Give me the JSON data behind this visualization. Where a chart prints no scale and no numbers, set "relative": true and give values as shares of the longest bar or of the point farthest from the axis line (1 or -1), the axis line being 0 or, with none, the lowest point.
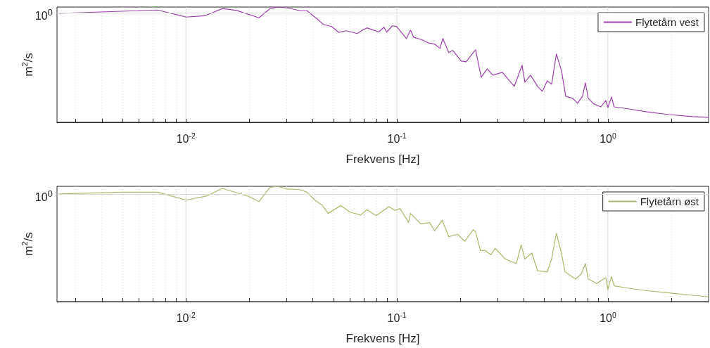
{
  "chart_data": [
    {
      "type": "line",
      "xlabel": "Frekvens [Hz]",
      "ylabel": "m$^{2}$/s",
      "log": "x",
      "relative": true,
      "grid": "x",
      "legend": "top right",
      "xlim": [
        0.00245,
        3.0
      ],
      "xticks": [
        {
          "value": 0.003,
          "label": null
        },
        {
          "value": 0.004,
          "label": null
        },
        {
          "value": 0.005,
          "label": null
        },
        {
          "value": 0.006,
          "label": null
        },
        {
          "value": 0.007,
          "label": null
        },
        {
          "value": 0.008,
          "label": null
        },
        {
          "value": 0.009,
          "label": null
        },
        {
          "value": 0.01,
          "label": "10$^{-2}$"
        },
        {
          "value": 0.02,
          "label": null
        },
        {
          "value": 0.03,
          "label": null
        },
        {
          "value": 0.04,
          "label": null
        },
        {
          "value": 0.05,
          "label": null
        },
        {
          "value": 0.06,
          "label": null
        },
        {
          "value": 0.07,
          "label": null
        },
        {
          "value": 0.08,
          "label": null
        },
        {
          "value": 0.09,
          "label": null
        },
        {
          "value": 0.1,
          "label": "10$^{-1}$"
        },
        {
          "value": 0.2,
          "label": null
        },
        {
          "value": 0.3,
          "label": null
        },
        {
          "value": 0.4,
          "label": null
        },
        {
          "value": 0.5,
          "label": null
        },
        {
          "value": 0.6,
          "label": null
        },
        {
          "value": 0.7,
          "label": null
        },
        {
          "value": 0.8,
          "label": null
        },
        {
          "value": 0.9,
          "label": null
        },
        {
          "value": 1,
          "label": "10$^{0}$"
        },
        {
          "value": 2,
          "label": null
        }
      ],
      "ref_lines": [
        {
          "axis": "y",
          "value": 0.95,
          "color": "#dcdcdc"
        }
      ],
      "annotations": [
        "10$^{0}$"
      ],
      "series": [
        {
          "name": "Flytetårn vest",
          "color": "#9e3fae",
          "x": [
            0.0025,
            0.00735,
            0.01,
            0.0123,
            0.0149,
            0.0174,
            0.0222,
            0.025,
            0.0274,
            0.0305,
            0.0348,
            0.0375,
            0.0418,
            0.0448,
            0.0491,
            0.0531,
            0.0569,
            0.0604,
            0.0648,
            0.0684,
            0.0721,
            0.0779,
            0.0822,
            0.0868,
            0.0895,
            0.0951,
            0.0996,
            0.111,
            0.116,
            0.12,
            0.132,
            0.14,
            0.151,
            0.16,
            0.165,
            0.176,
            0.184,
            0.202,
            0.213,
            0.23,
            0.236,
            0.251,
            0.268,
            0.285,
            0.316,
            0.36,
            0.392,
            0.404,
            0.43,
            0.464,
            0.489,
            0.516,
            0.541,
            0.57,
            0.602,
            0.631,
            0.681,
            0.718,
            0.758,
            0.782,
            0.807,
            0.857,
            0.926,
            0.977,
            1.0,
            1.04,
            1.07,
            1.26,
            1.51,
            1.95,
            2.52,
            3.0
          ],
          "values": [
            0.945,
            0.974,
            0.913,
            0.924,
            0.987,
            0.97,
            0.907,
            0.985,
            1,
            0.991,
            0.968,
            0.968,
            0.898,
            0.849,
            0.831,
            0.779,
            0.794,
            0.785,
            0.77,
            0.798,
            0.819,
            0.798,
            0.785,
            0.825,
            0.782,
            0.837,
            0.831,
            0.727,
            0.8,
            0.739,
            0.715,
            0.69,
            0.678,
            0.641,
            0.727,
            0.605,
            0.623,
            0.531,
            0.525,
            0.605,
            0.629,
            0.391,
            0.464,
            0.409,
            0.434,
            0.312,
            0.495,
            0.348,
            0.409,
            0.312,
            0.269,
            0.36,
            0.33,
            0.593,
            0.452,
            0.226,
            0.208,
            0.165,
            0.226,
            0.342,
            0.208,
            0.159,
            0.134,
            0.189,
            0.128,
            0.22,
            0.134,
            0.116,
            0.092,
            0.067,
            0.049,
            0.043
          ]
        }
      ]
    },
    {
      "type": "line",
      "xlabel": "Frekvens [Hz]",
      "ylabel": "m$^{2}$/s",
      "log": "x",
      "relative": true,
      "grid": "x",
      "legend": "top right",
      "xlim": [
        0.00245,
        3.0
      ],
      "xticks": [
        {
          "value": 0.003,
          "label": null
        },
        {
          "value": 0.004,
          "label": null
        },
        {
          "value": 0.005,
          "label": null
        },
        {
          "value": 0.006,
          "label": null
        },
        {
          "value": 0.007,
          "label": null
        },
        {
          "value": 0.008,
          "label": null
        },
        {
          "value": 0.009,
          "label": null
        },
        {
          "value": 0.01,
          "label": "10$^{-2}$"
        },
        {
          "value": 0.02,
          "label": null
        },
        {
          "value": 0.03,
          "label": null
        },
        {
          "value": 0.04,
          "label": null
        },
        {
          "value": 0.05,
          "label": null
        },
        {
          "value": 0.06,
          "label": null
        },
        {
          "value": 0.07,
          "label": null
        },
        {
          "value": 0.08,
          "label": null
        },
        {
          "value": 0.09,
          "label": null
        },
        {
          "value": 0.1,
          "label": "10$^{-1}$"
        },
        {
          "value": 0.2,
          "label": null
        },
        {
          "value": 0.3,
          "label": null
        },
        {
          "value": 0.4,
          "label": null
        },
        {
          "value": 0.5,
          "label": null
        },
        {
          "value": 0.6,
          "label": null
        },
        {
          "value": 0.7,
          "label": null
        },
        {
          "value": 0.8,
          "label": null
        },
        {
          "value": 0.9,
          "label": null
        },
        {
          "value": 1,
          "label": "10$^{0}$"
        },
        {
          "value": 2,
          "label": null
        }
      ],
      "ref_lines": [
        {
          "axis": "y",
          "value": 0.93,
          "color": "#dcdcdc"
        }
      ],
      "annotations": [
        "10$^{0}$"
      ],
      "series": [
        {
          "name": "Flytetårn øst",
          "color": "#a9b96b",
          "x": [
            0.0025,
            0.00493,
            0.00735,
            0.01,
            0.0125,
            0.0149,
            0.0198,
            0.0222,
            0.025,
            0.027,
            0.0305,
            0.0348,
            0.0375,
            0.0408,
            0.0441,
            0.0472,
            0.0543,
            0.06,
            0.0673,
            0.0721,
            0.0797,
            0.0916,
            0.0979,
            0.1035,
            0.1136,
            0.116,
            0.1294,
            0.143,
            0.151,
            0.164,
            0.176,
            0.194,
            0.21,
            0.23,
            0.236,
            0.249,
            0.261,
            0.279,
            0.292,
            0.326,
            0.368,
            0.388,
            0.404,
            0.436,
            0.464,
            0.516,
            0.541,
            0.57,
            0.602,
            0.626,
            0.702,
            0.747,
            0.782,
            0.807,
            0.884,
            0.977,
            1.0,
            1.04,
            1.07,
            1.26,
            1.51,
            1.95,
            2.52,
            3.0
          ],
          "values": [
            0.934,
            0.949,
            0.949,
            0.881,
            0.915,
            0.982,
            0.913,
            0.867,
            0.99,
            1,
            0.976,
            0.971,
            0.949,
            0.881,
            0.839,
            0.766,
            0.833,
            0.776,
            0.751,
            0.797,
            0.745,
            0.823,
            0.791,
            0.807,
            0.685,
            0.766,
            0.675,
            0.685,
            0.614,
            0.706,
            0.563,
            0.584,
            0.523,
            0.624,
            0.604,
            0.441,
            0.445,
            0.406,
            0.462,
            0.37,
            0.329,
            0.492,
            0.37,
            0.421,
            0.268,
            0.258,
            0.37,
            0.593,
            0.421,
            0.258,
            0.197,
            0.238,
            0.329,
            0.197,
            0.157,
            0.207,
            0.105,
            0.218,
            0.136,
            0.116,
            0.096,
            0.075,
            0.055,
            0.041
          ]
        }
      ]
    }
  ]
}
